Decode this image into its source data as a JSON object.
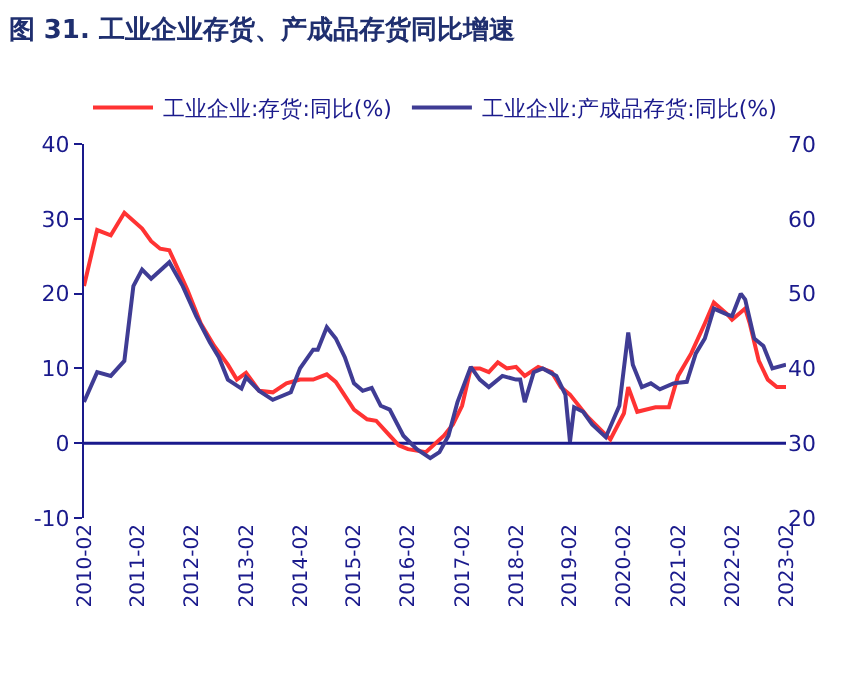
{
  "chart_data": {
    "type": "line",
    "title": "图 31. 工业企业存货、产成品存货同比增速",
    "series": [
      {
        "name": "工业企业:存货:同比(%)",
        "color": "#ff3333",
        "x": [
          "2010-02",
          "2010-05",
          "2010-08",
          "2010-11",
          "2011-03",
          "2011-05",
          "2011-07",
          "2011-09",
          "2011-10",
          "2012-01",
          "2012-04",
          "2012-07",
          "2012-10",
          "2012-12",
          "2013-02",
          "2013-05",
          "2013-08",
          "2013-11",
          "2014-02",
          "2014-05",
          "2014-08",
          "2014-10",
          "2015-02",
          "2015-05",
          "2015-07",
          "2015-10",
          "2015-12",
          "2016-02",
          "2016-06",
          "2016-10",
          "2016-12",
          "2017-02",
          "2017-04",
          "2017-06",
          "2017-08",
          "2017-10",
          "2017-12",
          "2018-02",
          "2018-04",
          "2018-07",
          "2018-10",
          "2018-12",
          "2019-02",
          "2019-06",
          "2019-11",
          "2020-02",
          "2020-03",
          "2020-05",
          "2020-09",
          "2020-12",
          "2021-02",
          "2021-05",
          "2021-08",
          "2021-10",
          "2022-01",
          "2022-02",
          "2022-05",
          "2022-06",
          "2022-08",
          "2022-10",
          "2022-12",
          "2023-02"
        ],
        "values": [
          21,
          28.5,
          27.8,
          30.8,
          28.7,
          27,
          26,
          25.8,
          24.5,
          20.5,
          16,
          13,
          10.5,
          8.5,
          9.4,
          7,
          6.8,
          8,
          8.5,
          8.5,
          9.2,
          8.2,
          4.5,
          3.2,
          3,
          1,
          -0.3,
          -0.8,
          -1.2,
          1,
          2.5,
          5,
          10,
          10,
          9.5,
          10.8,
          10,
          10.2,
          9,
          10.2,
          9.5,
          7.5,
          6.5,
          3.5,
          0.5,
          4,
          7.5,
          4.2,
          4.8,
          4.8,
          9,
          12,
          16,
          18.8,
          17.2,
          16.5,
          18,
          16,
          11,
          8.5,
          7.5,
          7.5
        ]
      },
      {
        "name": "工业企业:产成品存货:同比(%)",
        "color": "#3f3c94",
        "x": [
          "2010-02",
          "2010-05",
          "2010-08",
          "2010-11",
          "2011-01",
          "2011-03",
          "2011-05",
          "2011-09",
          "2011-12",
          "2012-03",
          "2012-06",
          "2012-08",
          "2012-10",
          "2013-01",
          "2013-02",
          "2013-05",
          "2013-08",
          "2013-12",
          "2014-02",
          "2014-05",
          "2014-06",
          "2014-08",
          "2014-10",
          "2014-12",
          "2015-02",
          "2015-04",
          "2015-06",
          "2015-08",
          "2015-10",
          "2016-01",
          "2016-04",
          "2016-07",
          "2016-09",
          "2016-11",
          "2017-01",
          "2017-04",
          "2017-06",
          "2017-08",
          "2017-11",
          "2018-02",
          "2018-03",
          "2018-04",
          "2018-06",
          "2018-08",
          "2018-11",
          "2019-01",
          "2019-02",
          "2019-03",
          "2019-05",
          "2019-07",
          "2019-10",
          "2020-01",
          "2020-03",
          "2020-04",
          "2020-06",
          "2020-08",
          "2020-10",
          "2021-01",
          "2021-04",
          "2021-06",
          "2021-08",
          "2021-10",
          "2022-01",
          "2022-02",
          "2022-04",
          "2022-05",
          "2022-07",
          "2022-09",
          "2022-11",
          "2023-02"
        ],
        "values": [
          5.5,
          9.5,
          9,
          11,
          21,
          23.2,
          22,
          24.2,
          21,
          17,
          13.5,
          11.5,
          8.5,
          7.3,
          8.8,
          7,
          5.8,
          6.8,
          10,
          12.5,
          12.5,
          15.5,
          14,
          11.5,
          8,
          7,
          7.4,
          5,
          4.5,
          1,
          -0.8,
          -2,
          -1.2,
          1,
          5.5,
          10.2,
          8.5,
          7.5,
          9,
          8.5,
          8.5,
          5.5,
          9.5,
          10,
          9,
          6.5,
          0.2,
          4.8,
          4.2,
          2.5,
          0.8,
          5,
          14.8,
          10.5,
          7.5,
          8,
          7.2,
          8,
          8.2,
          12,
          14,
          18,
          17.2,
          17,
          20,
          19.2,
          14,
          13,
          10,
          10.5
        ]
      }
    ],
    "xlim": [
      "2010-02",
      "2023-02"
    ],
    "xticks": [
      {
        "value": "2010-02",
        "label": "2010-02"
      },
      {
        "value": "2011-02",
        "label": "2011-02"
      },
      {
        "value": "2012-02",
        "label": "2012-02"
      },
      {
        "value": "2013-02",
        "label": "2013-02"
      },
      {
        "value": "2014-02",
        "label": "2014-02"
      },
      {
        "value": "2015-02",
        "label": "2015-02"
      },
      {
        "value": "2016-02",
        "label": "2016-02"
      },
      {
        "value": "2017-02",
        "label": "2017-02"
      },
      {
        "value": "2018-02",
        "label": "2018-02"
      },
      {
        "value": "2019-02",
        "label": "2019-02"
      },
      {
        "value": "2020-02",
        "label": "2020-02"
      },
      {
        "value": "2021-02",
        "label": "2021-02"
      },
      {
        "value": "2022-02",
        "label": "2022-02"
      },
      {
        "value": "2023-02",
        "label": "2023-02"
      }
    ],
    "ylim": [
      -10,
      40
    ],
    "yticks": [
      -10,
      0,
      10,
      20,
      30,
      40
    ],
    "y2lim": [
      20,
      70
    ],
    "y2ticks": [
      20,
      30,
      40,
      50,
      60,
      70
    ],
    "ref_lines": [
      {
        "axis": "y",
        "value": 0,
        "color": "#1a1a8c"
      }
    ],
    "legend": "top",
    "grid": false,
    "marker": "none",
    "line_style": "solid"
  }
}
